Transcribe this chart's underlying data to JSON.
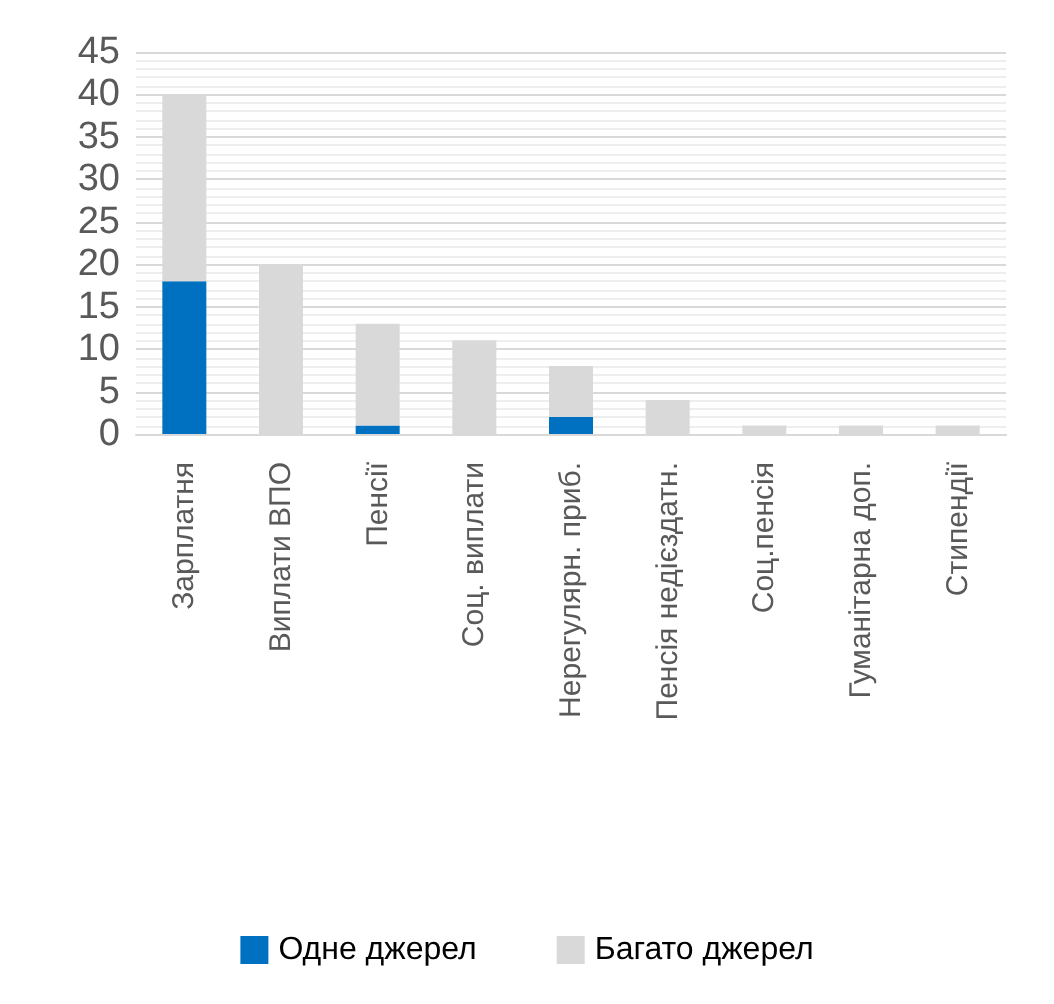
{
  "chart_data": {
    "type": "bar",
    "stacked": true,
    "categories": [
      "Зарплатня",
      "Виплати ВПО",
      "Пенсії",
      "Соц. виплати",
      "Нерегулярн. приб.",
      "Пенсія недієздатн.",
      "Соц.пенсія",
      "Гуманітарна доп.",
      "Стипендії"
    ],
    "series": [
      {
        "name": "Одне джерел",
        "color": "#0070c0",
        "values": [
          18,
          0,
          1,
          0,
          2,
          0,
          0,
          0,
          0
        ]
      },
      {
        "name": "Багато джерел",
        "color": "#d9d9d9",
        "values": [
          22,
          20,
          12,
          11,
          6,
          4,
          1,
          1,
          1
        ]
      }
    ],
    "ylim": [
      0,
      45
    ],
    "yticks": [
      0,
      5,
      10,
      15,
      20,
      25,
      30,
      35,
      40,
      45
    ],
    "grid": true,
    "legend": "bottom"
  }
}
